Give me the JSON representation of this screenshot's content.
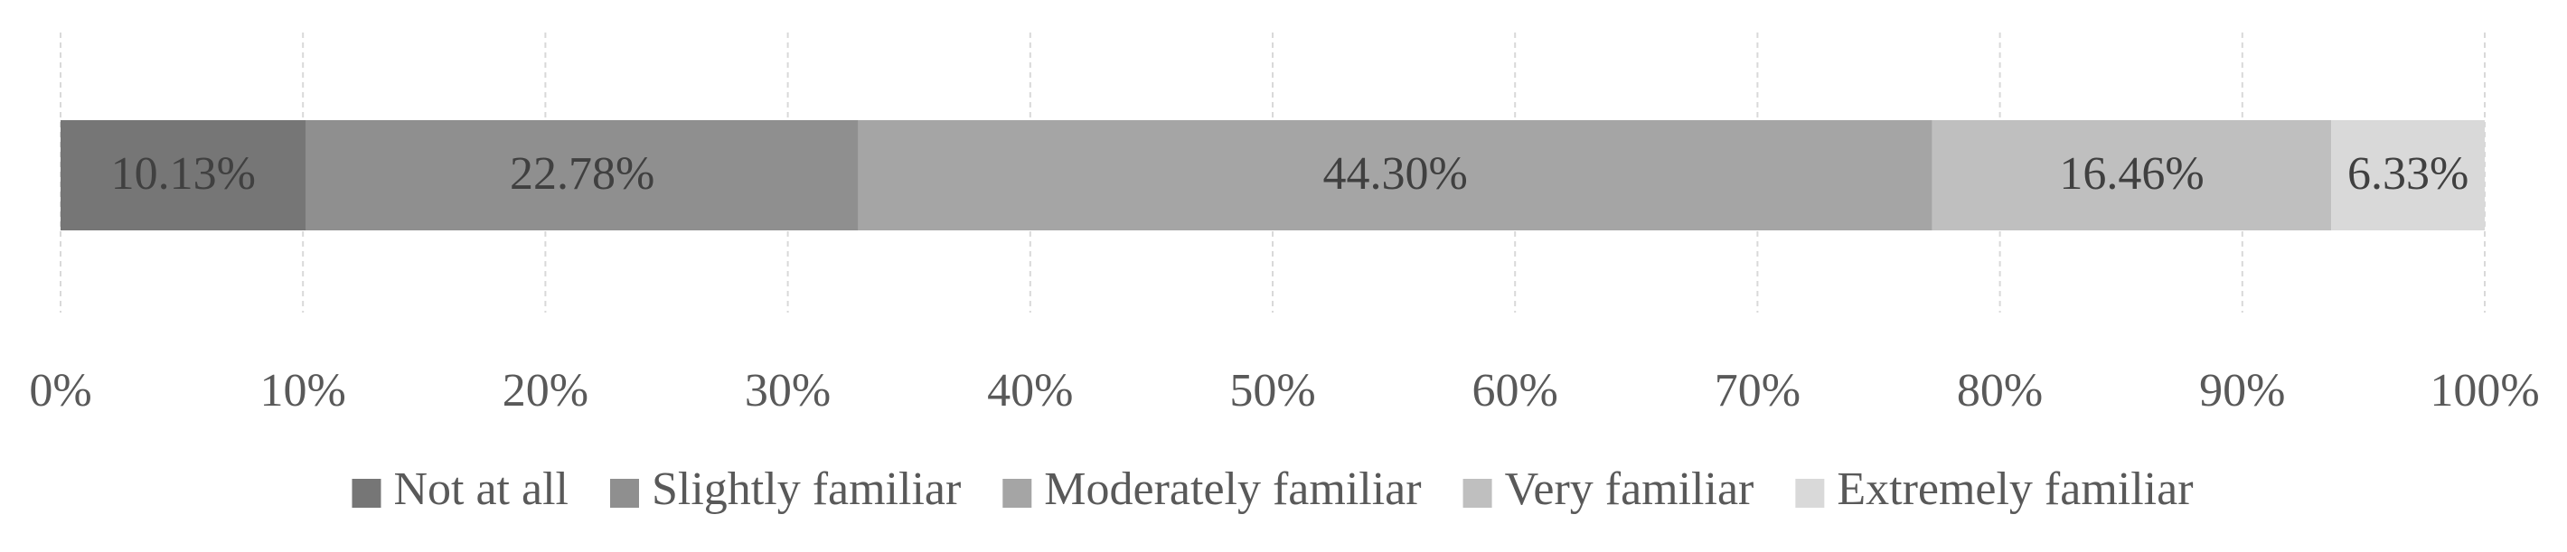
{
  "chart_data": {
    "type": "stacked-barh",
    "categories": [
      null
    ],
    "series": [
      {
        "name": "Not at all",
        "color": "#767676",
        "values": [
          10.13
        ],
        "value_labels": [
          "10.13%"
        ]
      },
      {
        "name": "Slightly familiar",
        "color": "#8f8f8f",
        "values": [
          22.78
        ],
        "value_labels": [
          "22.78%"
        ]
      },
      {
        "name": "Moderately familiar",
        "color": "#a5a5a5",
        "values": [
          44.3
        ],
        "value_labels": [
          "44.30%"
        ]
      },
      {
        "name": "Very familiar",
        "color": "#bfbfbf",
        "values": [
          16.46
        ],
        "value_labels": [
          "16.46%"
        ]
      },
      {
        "name": "Extremely familiar",
        "color": "#d9d9d9",
        "values": [
          6.33
        ],
        "value_labels": [
          "6.33%"
        ]
      }
    ],
    "xlim": [
      0,
      100
    ],
    "xticks": [
      {
        "value": 0,
        "label": "0%"
      },
      {
        "value": 10,
        "label": "10%"
      },
      {
        "value": 20,
        "label": "20%"
      },
      {
        "value": 30,
        "label": "30%"
      },
      {
        "value": 40,
        "label": "40%"
      },
      {
        "value": 50,
        "label": "50%"
      },
      {
        "value": 60,
        "label": "60%"
      },
      {
        "value": 70,
        "label": "70%"
      },
      {
        "value": 80,
        "label": "80%"
      },
      {
        "value": 90,
        "label": "90%"
      },
      {
        "value": 100,
        "label": "100%"
      }
    ],
    "grid": true,
    "legend": "bottom"
  }
}
